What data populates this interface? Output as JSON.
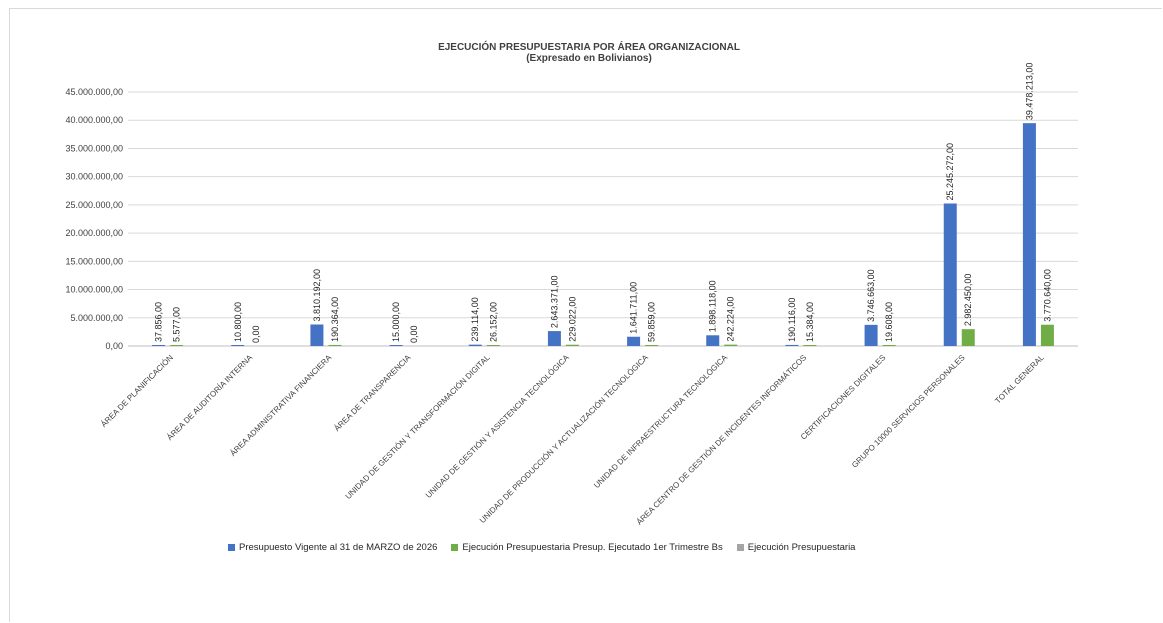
{
  "chart_data": {
    "type": "bar",
    "title": "EJECUCIÓN PRESUPUESTARIA POR ÁREA ORGANIZACIONAL",
    "subtitle": "(Expresado en Bolivianos)",
    "categories": [
      "ÁREA DE PLANIFICACIÓN",
      "ÁREA DE AUDITORÍA INTERNA",
      "ÁREA ADMINISTRATIVA FINANCIERA",
      "ÁREA DE TRANSPARENCIA",
      "UNIDAD DE GESTIÓN Y TRANSFORMACIÓN DIGITAL",
      "UNIDAD DE GESTIÓN Y ASISTENCIA TECNOLÓGICA",
      "UNIDAD DE PRODUCCIÓN Y ACTUALIZACIÓN TECNOLÓGICA",
      "UNIDAD DE INFRAESTRUCTURA TECNOLÓGICA",
      "ÁREA CENTRO DE GESTIÓN DE INCIDENTES INFORMÁTICOS",
      "CERTIFICACIONES DIGITALES",
      "GRUPO 10000 SERVICIOS PERSONALES",
      "TOTAL GENERAL"
    ],
    "series": [
      {
        "name": "Presupuesto Vigente al 31 de MARZO de 2026",
        "color": "#4472c4",
        "values": [
          37856,
          10800,
          3810192,
          15000,
          239114,
          2643371,
          1641711,
          1898118,
          190116,
          3746663,
          25245272,
          39478213
        ],
        "labels": [
          "37.856,00",
          "10.800,00",
          "3.810.192,00",
          "15.000,00",
          "239.114,00",
          "2.643.371,00",
          "1.641.711,00",
          "1.898.118,00",
          "190.116,00",
          "3.746.663,00",
          "25.245.272,00",
          "39.478.213,00"
        ]
      },
      {
        "name": "Ejecución Presupuestaria Presup. Ejecutado 1er Trimestre Bs",
        "color": "#70ad47",
        "values": [
          5577,
          0,
          190364,
          0,
          26152,
          229022,
          59859,
          242224,
          15384,
          19608,
          2982450,
          3770640
        ],
        "labels": [
          "5.577,00",
          "0,00",
          "190.364,00",
          "0,00",
          "26.152,00",
          "229.022,00",
          "59.859,00",
          "242.224,00",
          "15.384,00",
          "19.608,00",
          "2.982.450,00",
          "3.770.640,00"
        ]
      },
      {
        "name": "Ejecución Presupuestaria",
        "color": "#a5a5a5",
        "values": [
          0,
          0,
          0,
          0,
          0,
          0,
          0,
          0,
          0,
          0,
          0,
          0
        ],
        "labels": []
      }
    ],
    "ylim": [
      0,
      45000000
    ],
    "yticks": [
      "0,00",
      "5.000.000,00",
      "10.000.000,00",
      "15.000.000,00",
      "20.000.000,00",
      "25.000.000,00",
      "30.000.000,00",
      "35.000.000,00",
      "40.000.000,00",
      "45.000.000,00"
    ],
    "grid": true,
    "legend_position": "bottom"
  }
}
